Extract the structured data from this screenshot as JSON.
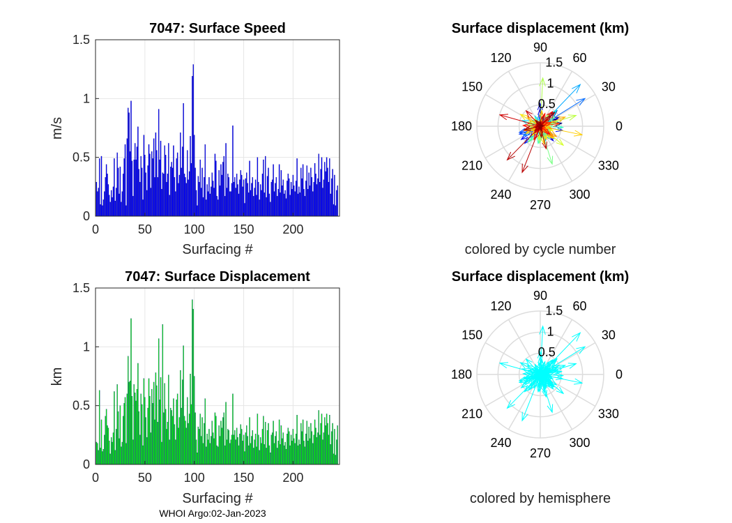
{
  "footer": "WHOI Argo:02-Jan-2023",
  "chart_data": [
    {
      "type": "bar",
      "title": "7047: Surface Speed",
      "xlabel": "Surfacing #",
      "ylabel": "m/s",
      "xlim": [
        0,
        247
      ],
      "ylim": [
        0,
        1.5
      ],
      "xticks": [
        "0",
        "50",
        "100",
        "150",
        "200"
      ],
      "yticks": [
        "0",
        "0.5",
        "1",
        "1.5"
      ],
      "color": "#0000ff",
      "grid": true,
      "values": [
        0.29,
        0.21,
        0.24,
        0.49,
        0.1,
        0.51,
        0.09,
        0.14,
        0.21,
        0.33,
        0.44,
        0.36,
        0.27,
        0.18,
        0.12,
        0.22,
        0.16,
        0.25,
        0.49,
        0.13,
        0.24,
        0.54,
        0.41,
        0.19,
        0.42,
        0.12,
        0.21,
        0.36,
        0.49,
        0.61,
        0.09,
        0.66,
        0.92,
        0.88,
        0.55,
        0.98,
        0.47,
        0.17,
        0.48,
        0.62,
        0.48,
        0.59,
        0.76,
        0.4,
        0.29,
        0.51,
        0.41,
        0.14,
        0.69,
        0.52,
        0.37,
        0.22,
        0.43,
        0.61,
        0.53,
        0.24,
        0.55,
        0.49,
        0.66,
        0.33,
        0.71,
        0.56,
        0.33,
        0.91,
        0.48,
        0.64,
        0.23,
        0.37,
        0.36,
        0.6,
        0.52,
        0.29,
        0.36,
        0.62,
        0.18,
        0.42,
        0.46,
        0.41,
        0.6,
        0.33,
        0.21,
        0.49,
        0.54,
        0.28,
        0.35,
        0.71,
        0.41,
        0.59,
        0.96,
        0.36,
        0.33,
        0.28,
        0.56,
        0.31,
        0.38,
        0.68,
        0.45,
        1.19,
        1.29,
        0.69,
        0.41,
        0.22,
        0.09,
        0.34,
        0.29,
        0.48,
        0.24,
        0.41,
        0.16,
        0.33,
        0.61,
        0.14,
        0.27,
        0.21,
        0.33,
        0.19,
        0.25,
        0.37,
        0.3,
        0.24,
        0.53,
        0.47,
        0.17,
        0.14,
        0.39,
        0.26,
        0.44,
        0.35,
        0.46,
        0.51,
        0.17,
        0.62,
        0.24,
        0.36,
        0.33,
        0.21,
        0.21,
        0.28,
        0.77,
        0.29,
        0.33,
        0.24,
        0.36,
        0.27,
        0.19,
        0.31,
        0.39,
        0.35,
        0.25,
        0.31,
        0.11,
        0.32,
        0.37,
        0.28,
        0.2,
        0.47,
        0.22,
        0.28,
        0.33,
        0.17,
        0.24,
        0.31,
        0.18,
        0.5,
        0.29,
        0.14,
        0.27,
        0.22,
        0.36,
        0.48,
        0.2,
        0.51,
        0.16,
        0.34,
        0.41,
        0.19,
        0.12,
        0.29,
        0.31,
        0.44,
        0.21,
        0.28,
        0.33,
        0.17,
        0.23,
        0.44,
        0.2,
        0.39,
        0.26,
        0.31,
        0.19,
        0.22,
        0.15,
        0.3,
        0.36,
        0.32,
        0.18,
        0.29,
        0.23,
        0.35,
        0.26,
        0.21,
        0.3,
        0.49,
        0.19,
        0.25,
        0.2,
        0.41,
        0.32,
        0.44,
        0.23,
        0.17,
        0.3,
        0.43,
        0.23,
        0.37,
        0.26,
        0.41,
        0.33,
        0.21,
        0.29,
        0.45,
        0.36,
        0.27,
        0.32,
        0.53,
        0.29,
        0.4,
        0.5,
        0.24,
        0.31,
        0.46,
        0.38,
        0.5,
        0.41,
        0.29,
        0.49,
        0.19,
        0.32,
        0.4,
        0.1,
        0.35,
        0.09,
        0.22,
        0.26
      ]
    },
    {
      "type": "polar-vectors",
      "title": "Surface displacement (km)",
      "caption": "colored by cycle number",
      "rlim": [
        0,
        1.5
      ],
      "rticks": [
        "0.5",
        "1",
        "1.5"
      ],
      "theta_labels": [
        "0",
        "30",
        "60",
        "90",
        "120",
        "150",
        "180",
        "210",
        "240",
        "270",
        "300",
        "330"
      ],
      "coloring": "jet colormap by cycle number (first cycles dark blue, last cycles dark red)"
    },
    {
      "type": "bar",
      "title": "7047: Surface Displacement",
      "xlabel": "Surfacing #",
      "ylabel": "km",
      "xlim": [
        0,
        247
      ],
      "ylim": [
        0,
        1.5
      ],
      "xticks": [
        "0",
        "50",
        "100",
        "150",
        "200"
      ],
      "yticks": [
        "0",
        "0.5",
        "1",
        "1.5"
      ],
      "color": "#00ff00",
      "grid": true,
      "values": [
        0.19,
        0.18,
        0.12,
        0.63,
        0.14,
        0.38,
        0.11,
        0.13,
        0.25,
        0.41,
        0.47,
        0.33,
        0.31,
        0.2,
        0.09,
        0.23,
        0.19,
        0.27,
        0.62,
        0.12,
        0.3,
        0.68,
        0.45,
        0.22,
        0.5,
        0.15,
        0.19,
        0.41,
        0.52,
        0.57,
        0.18,
        0.6,
        0.92,
        0.7,
        0.71,
        1.24,
        0.58,
        0.21,
        0.68,
        0.61,
        0.54,
        0.64,
        0.86,
        0.45,
        0.25,
        0.6,
        0.51,
        0.16,
        0.73,
        0.57,
        0.4,
        0.23,
        0.48,
        0.73,
        0.58,
        0.27,
        0.64,
        0.52,
        0.7,
        0.38,
        0.78,
        0.67,
        0.36,
        1.07,
        0.55,
        0.74,
        0.19,
        1.19,
        0.44,
        0.69,
        0.47,
        0.3,
        0.36,
        0.76,
        0.21,
        0.48,
        0.46,
        0.41,
        0.56,
        0.34,
        0.21,
        0.55,
        0.6,
        0.31,
        0.4,
        0.8,
        0.48,
        0.72,
        1.01,
        0.41,
        0.37,
        0.31,
        0.57,
        0.35,
        0.43,
        0.77,
        0.51,
        1.4,
        1.32,
        0.75,
        0.44,
        0.21,
        0.1,
        0.32,
        0.3,
        0.43,
        0.24,
        0.4,
        0.18,
        0.35,
        0.56,
        0.15,
        0.26,
        0.21,
        0.3,
        0.18,
        0.24,
        0.37,
        0.27,
        0.22,
        0.44,
        0.41,
        0.16,
        0.15,
        0.33,
        0.24,
        0.37,
        0.31,
        0.4,
        0.44,
        0.16,
        0.53,
        0.21,
        0.3,
        0.29,
        0.18,
        0.21,
        0.25,
        0.6,
        0.25,
        0.29,
        0.21,
        0.31,
        0.23,
        0.16,
        0.26,
        0.34,
        0.3,
        0.2,
        0.25,
        0.11,
        0.27,
        0.33,
        0.24,
        0.16,
        0.4,
        0.18,
        0.24,
        0.29,
        0.14,
        0.21,
        0.26,
        0.15,
        0.43,
        0.25,
        0.12,
        0.23,
        0.18,
        0.3,
        0.41,
        0.17,
        0.36,
        0.14,
        0.29,
        0.35,
        0.16,
        0.1,
        0.25,
        0.27,
        0.37,
        0.18,
        0.24,
        0.28,
        0.14,
        0.2,
        0.38,
        0.17,
        0.33,
        0.22,
        0.27,
        0.16,
        0.19,
        0.13,
        0.26,
        0.31,
        0.28,
        0.16,
        0.25,
        0.2,
        0.3,
        0.22,
        0.18,
        0.26,
        0.42,
        0.16,
        0.21,
        0.17,
        0.35,
        0.28,
        0.38,
        0.2,
        0.15,
        0.26,
        0.37,
        0.2,
        0.32,
        0.22,
        0.35,
        0.28,
        0.18,
        0.25,
        0.38,
        0.31,
        0.23,
        0.27,
        0.46,
        0.25,
        0.35,
        0.43,
        0.21,
        0.27,
        0.4,
        0.33,
        0.43,
        0.35,
        0.25,
        0.42,
        0.17,
        0.28,
        0.35,
        0.09,
        0.3,
        0.08,
        0.21,
        0.33
      ]
    },
    {
      "type": "polar-vectors",
      "title": "Surface displacement (km)",
      "caption": "colored by hemisphere",
      "rlim": [
        0,
        1.5
      ],
      "rticks": [
        "0.5",
        "1",
        "1.5"
      ],
      "theta_labels": [
        "0",
        "30",
        "60",
        "90",
        "120",
        "150",
        "180",
        "210",
        "240",
        "270",
        "300",
        "330"
      ],
      "coloring": "single color (cyan) for the float's hemisphere",
      "color": "#00ffff"
    }
  ]
}
